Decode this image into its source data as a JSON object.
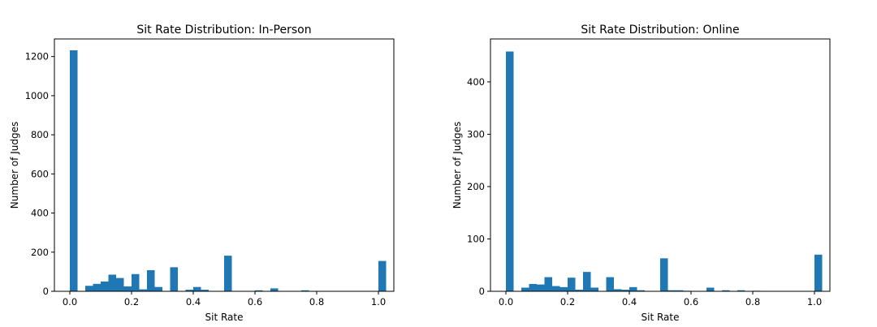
{
  "chart_data": [
    {
      "type": "bar",
      "title": "Sit Rate Distribution: In-Person",
      "xlabel": "Sit Rate",
      "ylabel": "Number of Judges",
      "xlim": [
        -0.05,
        1.05
      ],
      "ylim": [
        0,
        1290
      ],
      "xticks": [
        "0.0",
        "0.2",
        "0.4",
        "0.6",
        "0.8",
        "1.0"
      ],
      "yticks": [
        "0",
        "200",
        "400",
        "600",
        "800",
        "1000",
        "1200"
      ],
      "bin_width": 0.025,
      "color": "#1f77b4",
      "bins": [
        {
          "x": 0.0,
          "value": 1232
        },
        {
          "x": 0.05,
          "value": 28
        },
        {
          "x": 0.075,
          "value": 38
        },
        {
          "x": 0.1,
          "value": 50
        },
        {
          "x": 0.125,
          "value": 85
        },
        {
          "x": 0.15,
          "value": 68
        },
        {
          "x": 0.175,
          "value": 25
        },
        {
          "x": 0.2,
          "value": 88
        },
        {
          "x": 0.225,
          "value": 10
        },
        {
          "x": 0.25,
          "value": 108
        },
        {
          "x": 0.275,
          "value": 22
        },
        {
          "x": 0.325,
          "value": 123
        },
        {
          "x": 0.375,
          "value": 8
        },
        {
          "x": 0.4,
          "value": 22
        },
        {
          "x": 0.425,
          "value": 8
        },
        {
          "x": 0.5,
          "value": 182
        },
        {
          "x": 0.6,
          "value": 5
        },
        {
          "x": 0.65,
          "value": 15
        },
        {
          "x": 0.75,
          "value": 5
        },
        {
          "x": 1.0,
          "value": 155
        }
      ]
    },
    {
      "type": "bar",
      "title": "Sit Rate Distribution: Online",
      "xlabel": "Sit Rate",
      "ylabel": "Number of Judges",
      "xlim": [
        -0.05,
        1.05
      ],
      "ylim": [
        0,
        482
      ],
      "xticks": [
        "0.0",
        "0.2",
        "0.4",
        "0.6",
        "0.8",
        "1.0"
      ],
      "yticks": [
        "0",
        "100",
        "200",
        "300",
        "400"
      ],
      "bin_width": 0.025,
      "color": "#1f77b4",
      "bins": [
        {
          "x": 0.0,
          "value": 458
        },
        {
          "x": 0.05,
          "value": 7
        },
        {
          "x": 0.075,
          "value": 14
        },
        {
          "x": 0.1,
          "value": 13
        },
        {
          "x": 0.125,
          "value": 27
        },
        {
          "x": 0.15,
          "value": 10
        },
        {
          "x": 0.175,
          "value": 8
        },
        {
          "x": 0.2,
          "value": 26
        },
        {
          "x": 0.225,
          "value": 3
        },
        {
          "x": 0.25,
          "value": 37
        },
        {
          "x": 0.275,
          "value": 7
        },
        {
          "x": 0.325,
          "value": 27
        },
        {
          "x": 0.35,
          "value": 4
        },
        {
          "x": 0.375,
          "value": 3
        },
        {
          "x": 0.4,
          "value": 8
        },
        {
          "x": 0.425,
          "value": 2
        },
        {
          "x": 0.5,
          "value": 63
        },
        {
          "x": 0.525,
          "value": 2
        },
        {
          "x": 0.55,
          "value": 2
        },
        {
          "x": 0.575,
          "value": 1
        },
        {
          "x": 0.65,
          "value": 7
        },
        {
          "x": 0.7,
          "value": 2
        },
        {
          "x": 0.75,
          "value": 2
        },
        {
          "x": 0.8,
          "value": 1
        },
        {
          "x": 1.0,
          "value": 70
        }
      ]
    }
  ]
}
